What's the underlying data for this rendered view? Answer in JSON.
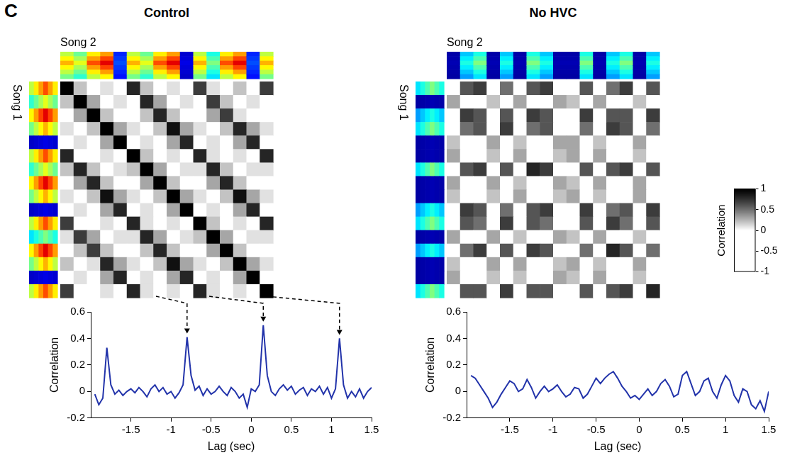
{
  "panel": "C",
  "chart_data": [
    {
      "type": "heatmap",
      "title": "Control",
      "x_label": "Song 2",
      "y_label": "Song 1",
      "tick_labels": false,
      "cells": [
        [
          1.0,
          0.2,
          -0.3,
          0.1,
          -0.2,
          0.8,
          0.2,
          -0.3,
          0.1,
          -0.2,
          0.7,
          0.1,
          -0.3,
          0.2,
          -0.2,
          0.7
        ],
        [
          0.2,
          1.0,
          0.3,
          -0.2,
          0.1,
          -0.1,
          0.8,
          0.3,
          -0.2,
          0.1,
          0.0,
          0.7,
          0.2,
          -0.2,
          0.1,
          -0.1
        ],
        [
          -0.3,
          0.3,
          1.0,
          0.2,
          -0.3,
          -0.2,
          0.2,
          0.8,
          0.2,
          -0.3,
          -0.2,
          0.3,
          0.7,
          0.1,
          -0.3,
          -0.2
        ],
        [
          0.1,
          -0.2,
          0.2,
          1.0,
          0.3,
          0.1,
          -0.2,
          0.2,
          0.9,
          0.3,
          0.1,
          -0.2,
          0.2,
          0.8,
          0.3,
          0.1
        ],
        [
          -0.2,
          0.1,
          -0.3,
          0.3,
          1.0,
          -0.2,
          0.1,
          -0.3,
          0.3,
          0.8,
          -0.2,
          0.1,
          -0.3,
          0.3,
          0.8,
          -0.2
        ],
        [
          0.8,
          -0.1,
          -0.2,
          0.1,
          -0.2,
          1.0,
          0.2,
          -0.3,
          0.1,
          -0.2,
          0.8,
          0.1,
          -0.2,
          0.1,
          -0.2,
          0.8
        ],
        [
          0.2,
          0.8,
          0.2,
          -0.2,
          0.1,
          0.2,
          1.0,
          0.3,
          -0.2,
          0.1,
          0.1,
          0.8,
          0.2,
          -0.2,
          0.1,
          0.1
        ],
        [
          -0.3,
          0.3,
          0.8,
          0.2,
          -0.3,
          -0.3,
          0.3,
          1.0,
          0.2,
          -0.3,
          -0.3,
          0.3,
          0.8,
          0.2,
          -0.3,
          -0.3
        ],
        [
          0.1,
          -0.2,
          0.2,
          0.9,
          0.3,
          0.1,
          -0.2,
          0.2,
          1.0,
          0.3,
          0.1,
          -0.2,
          0.2,
          0.9,
          0.3,
          0.1
        ],
        [
          -0.2,
          0.1,
          -0.3,
          0.3,
          0.8,
          -0.2,
          0.1,
          -0.3,
          0.3,
          1.0,
          -0.2,
          0.1,
          -0.3,
          0.3,
          0.8,
          -0.2
        ],
        [
          0.7,
          0.0,
          -0.2,
          0.1,
          -0.2,
          0.8,
          0.1,
          -0.3,
          0.1,
          -0.2,
          1.0,
          0.2,
          -0.3,
          0.1,
          -0.2,
          0.8
        ],
        [
          0.1,
          0.7,
          0.3,
          -0.2,
          0.1,
          0.1,
          0.8,
          0.3,
          -0.2,
          0.1,
          0.2,
          1.0,
          0.3,
          -0.2,
          0.1,
          0.1
        ],
        [
          -0.3,
          0.2,
          0.7,
          0.2,
          -0.3,
          -0.2,
          0.2,
          0.8,
          0.2,
          -0.3,
          -0.3,
          0.3,
          1.0,
          0.2,
          -0.3,
          -0.2
        ],
        [
          0.2,
          -0.2,
          0.1,
          0.8,
          0.3,
          0.1,
          -0.2,
          0.2,
          0.9,
          0.3,
          0.1,
          -0.2,
          0.2,
          1.0,
          0.3,
          0.1
        ],
        [
          -0.2,
          0.1,
          -0.3,
          0.3,
          0.8,
          -0.2,
          0.1,
          -0.3,
          0.3,
          0.8,
          -0.2,
          0.1,
          -0.3,
          0.3,
          1.0,
          -0.2
        ],
        [
          0.7,
          -0.1,
          -0.2,
          0.1,
          -0.2,
          0.8,
          0.1,
          -0.3,
          0.1,
          -0.2,
          0.8,
          0.1,
          -0.2,
          0.1,
          -0.2,
          1.0
        ]
      ],
      "spectrogram_x": [
        0.7,
        0.6,
        0.8,
        0.9,
        0.2,
        0.7,
        0.6,
        0.8,
        0.9,
        0.1,
        0.7,
        0.5,
        0.8,
        0.9,
        0.2,
        0.7
      ],
      "spectrogram_y": [
        0.8,
        0.6,
        0.9,
        0.7,
        0.1,
        0.8,
        0.6,
        0.9,
        0.7,
        0.1,
        0.8,
        0.5,
        0.9,
        0.7,
        0.1,
        0.8
      ]
    },
    {
      "type": "heatmap",
      "title": "No HVC",
      "x_label": "Song 2",
      "y_label": "Song 1",
      "tick_labels": false,
      "cells": [
        [
          -0.3,
          0.6,
          0.7,
          -0.3,
          0.5,
          -0.3,
          0.6,
          0.7,
          -0.3,
          -0.3,
          0.6,
          -0.3,
          0.5,
          0.7,
          -0.3,
          0.6
        ],
        [
          0.3,
          -0.3,
          -0.3,
          0.2,
          -0.3,
          0.3,
          -0.3,
          -0.3,
          0.3,
          0.2,
          -0.3,
          0.3,
          -0.3,
          -0.3,
          0.2,
          -0.3
        ],
        [
          -0.3,
          0.7,
          0.6,
          -0.2,
          0.6,
          -0.3,
          0.7,
          0.6,
          -0.3,
          -0.2,
          0.7,
          -0.3,
          0.6,
          0.6,
          -0.3,
          0.7
        ],
        [
          -0.2,
          0.5,
          0.6,
          -0.3,
          0.7,
          -0.2,
          0.5,
          0.6,
          -0.2,
          -0.3,
          0.5,
          -0.2,
          0.7,
          0.6,
          -0.2,
          0.5
        ],
        [
          0.2,
          -0.3,
          -0.3,
          0.3,
          -0.3,
          0.2,
          -0.3,
          -0.3,
          0.3,
          0.3,
          -0.3,
          0.2,
          -0.3,
          -0.3,
          0.3,
          -0.3
        ],
        [
          0.3,
          -0.3,
          -0.2,
          0.2,
          -0.3,
          0.3,
          -0.3,
          -0.2,
          0.2,
          0.3,
          -0.3,
          0.3,
          -0.3,
          -0.2,
          0.2,
          -0.3
        ],
        [
          -0.3,
          0.6,
          0.7,
          -0.3,
          0.6,
          -0.3,
          0.8,
          0.7,
          -0.3,
          -0.3,
          0.6,
          -0.3,
          0.6,
          0.7,
          -0.3,
          0.6
        ],
        [
          0.3,
          -0.2,
          -0.3,
          0.3,
          -0.3,
          0.2,
          -0.3,
          -0.3,
          0.3,
          0.2,
          -0.2,
          0.3,
          -0.3,
          -0.3,
          0.3,
          -0.2
        ],
        [
          0.2,
          -0.3,
          -0.3,
          0.2,
          -0.2,
          0.3,
          -0.3,
          -0.3,
          0.2,
          0.3,
          -0.3,
          0.2,
          -0.2,
          -0.3,
          0.3,
          -0.3
        ],
        [
          -0.3,
          0.7,
          0.6,
          -0.3,
          0.5,
          -0.3,
          0.6,
          0.7,
          -0.3,
          -0.3,
          0.7,
          -0.3,
          0.5,
          0.6,
          -0.3,
          0.7
        ],
        [
          -0.2,
          0.6,
          0.5,
          -0.2,
          0.7,
          -0.2,
          0.6,
          0.5,
          -0.2,
          -0.2,
          0.6,
          -0.2,
          0.7,
          0.5,
          -0.2,
          0.6
        ],
        [
          0.3,
          -0.3,
          -0.3,
          0.3,
          -0.3,
          0.2,
          -0.3,
          -0.3,
          0.3,
          0.2,
          -0.3,
          0.3,
          -0.3,
          -0.3,
          0.2,
          -0.3
        ],
        [
          -0.3,
          0.5,
          0.7,
          -0.3,
          0.6,
          -0.3,
          0.7,
          0.6,
          -0.3,
          -0.3,
          0.5,
          -0.3,
          0.8,
          0.6,
          -0.3,
          0.5
        ],
        [
          0.2,
          -0.3,
          -0.3,
          0.3,
          -0.3,
          0.3,
          -0.3,
          -0.2,
          0.2,
          0.3,
          -0.3,
          0.2,
          -0.3,
          -0.3,
          0.3,
          -0.3
        ],
        [
          0.3,
          -0.2,
          -0.3,
          0.2,
          -0.3,
          0.2,
          -0.2,
          -0.3,
          0.3,
          0.2,
          -0.3,
          0.3,
          -0.2,
          -0.3,
          0.2,
          -0.2
        ],
        [
          -0.3,
          0.6,
          0.6,
          -0.3,
          0.7,
          -0.3,
          0.6,
          0.6,
          -0.3,
          -0.3,
          0.6,
          -0.3,
          0.6,
          0.7,
          -0.3,
          0.8
        ]
      ],
      "spectrogram_x": [
        0.05,
        0.4,
        0.5,
        0.05,
        0.4,
        0.05,
        0.5,
        0.4,
        0.05,
        0.05,
        0.5,
        0.05,
        0.4,
        0.5,
        0.05,
        0.4
      ],
      "spectrogram_y": [
        0.5,
        0.05,
        0.4,
        0.5,
        0.05,
        0.05,
        0.5,
        0.05,
        0.05,
        0.4,
        0.5,
        0.05,
        0.4,
        0.05,
        0.05,
        0.5
      ]
    },
    {
      "type": "line",
      "x_label": "Lag (sec)",
      "y_label": "Correlation",
      "color": "#2233aa",
      "grid": false,
      "xlim": [
        -2,
        1.5
      ],
      "xticks": [
        -1.5,
        -1,
        -0.5,
        0,
        0.5,
        1,
        1.5
      ],
      "ylim": [
        -0.2,
        0.6
      ],
      "yticks": [
        -0.2,
        0,
        0.2,
        0.4,
        0.6
      ],
      "x": [
        -1.95,
        -1.9,
        -1.85,
        -1.8,
        -1.75,
        -1.7,
        -1.65,
        -1.6,
        -1.55,
        -1.5,
        -1.45,
        -1.4,
        -1.35,
        -1.3,
        -1.25,
        -1.2,
        -1.15,
        -1.1,
        -1.05,
        -1.0,
        -0.95,
        -0.9,
        -0.85,
        -0.8,
        -0.75,
        -0.7,
        -0.65,
        -0.6,
        -0.55,
        -0.5,
        -0.45,
        -0.4,
        -0.35,
        -0.3,
        -0.25,
        -0.2,
        -0.15,
        -0.1,
        -0.05,
        0.0,
        0.05,
        0.1,
        0.15,
        0.2,
        0.25,
        0.3,
        0.35,
        0.4,
        0.45,
        0.5,
        0.55,
        0.6,
        0.65,
        0.7,
        0.75,
        0.8,
        0.85,
        0.9,
        0.95,
        1.0,
        1.05,
        1.1,
        1.15,
        1.2,
        1.25,
        1.3,
        1.35,
        1.4,
        1.45,
        1.5
      ],
      "values": [
        -0.02,
        -0.1,
        -0.05,
        0.33,
        0.05,
        -0.02,
        0.01,
        -0.03,
        0.0,
        0.02,
        -0.01,
        0.03,
        0.0,
        -0.04,
        0.02,
        0.05,
        0.0,
        0.03,
        -0.02,
        0.0,
        -0.05,
        -0.01,
        0.05,
        0.41,
        0.12,
        0.01,
        0.04,
        -0.03,
        0.02,
        -0.02,
        0.0,
        0.04,
        0.0,
        -0.03,
        0.03,
        0.0,
        -0.05,
        -0.02,
        -0.12,
        0.02,
        0.0,
        0.05,
        0.5,
        0.12,
        0.0,
        -0.03,
        0.02,
        0.05,
        0.01,
        0.04,
        -0.02,
        0.01,
        0.03,
        -0.03,
        0.02,
        0.0,
        0.04,
        -0.02,
        0.03,
        -0.05,
        0.02,
        0.4,
        0.05,
        -0.05,
        0.0,
        -0.04,
        0.02,
        -0.05,
        0.0,
        0.03
      ]
    },
    {
      "type": "line",
      "x_label": "Lag (sec)",
      "y_label": "Correlation",
      "color": "#2233aa",
      "grid": false,
      "xlim": [
        -2,
        1.5
      ],
      "xticks": [
        -1.5,
        -1,
        -0.5,
        0,
        0.5,
        1,
        1.5
      ],
      "ylim": [
        -0.2,
        0.6
      ],
      "yticks": [
        -0.2,
        0,
        0.2,
        0.4,
        0.6
      ],
      "x": [
        -1.95,
        -1.9,
        -1.85,
        -1.8,
        -1.75,
        -1.7,
        -1.65,
        -1.6,
        -1.55,
        -1.5,
        -1.45,
        -1.4,
        -1.35,
        -1.3,
        -1.25,
        -1.2,
        -1.15,
        -1.1,
        -1.05,
        -1.0,
        -0.95,
        -0.9,
        -0.85,
        -0.8,
        -0.75,
        -0.7,
        -0.65,
        -0.6,
        -0.55,
        -0.5,
        -0.45,
        -0.4,
        -0.35,
        -0.3,
        -0.25,
        -0.2,
        -0.15,
        -0.1,
        -0.05,
        0.0,
        0.05,
        0.1,
        0.15,
        0.2,
        0.25,
        0.3,
        0.35,
        0.4,
        0.45,
        0.5,
        0.55,
        0.6,
        0.65,
        0.7,
        0.75,
        0.8,
        0.85,
        0.9,
        0.95,
        1.0,
        1.05,
        1.1,
        1.15,
        1.2,
        1.25,
        1.3,
        1.35,
        1.4,
        1.45,
        1.5
      ],
      "values": [
        0.12,
        0.1,
        0.05,
        0.0,
        -0.05,
        -0.12,
        -0.08,
        -0.02,
        0.03,
        0.08,
        0.06,
        0.0,
        0.02,
        0.09,
        0.03,
        -0.05,
        0.0,
        0.04,
        0.0,
        0.02,
        0.05,
        0.0,
        -0.04,
        -0.02,
        0.03,
        0.02,
        -0.05,
        -0.02,
        0.04,
        0.1,
        0.06,
        0.1,
        0.13,
        0.15,
        0.1,
        0.04,
        0.0,
        -0.05,
        -0.03,
        -0.06,
        -0.02,
        0.02,
        -0.03,
        0.0,
        0.06,
        0.09,
        0.04,
        -0.04,
        -0.02,
        0.12,
        0.15,
        0.06,
        -0.03,
        0.0,
        0.08,
        0.1,
        0.0,
        -0.05,
        0.05,
        0.12,
        0.08,
        -0.03,
        -0.08,
        0.02,
        0.0,
        -0.1,
        -0.13,
        -0.07,
        -0.15,
        0.0
      ]
    }
  ],
  "colorbar": {
    "label": "Correlation",
    "range": [
      -1,
      1
    ],
    "ticks": [
      -1,
      -0.5,
      0,
      0.5,
      1
    ]
  }
}
